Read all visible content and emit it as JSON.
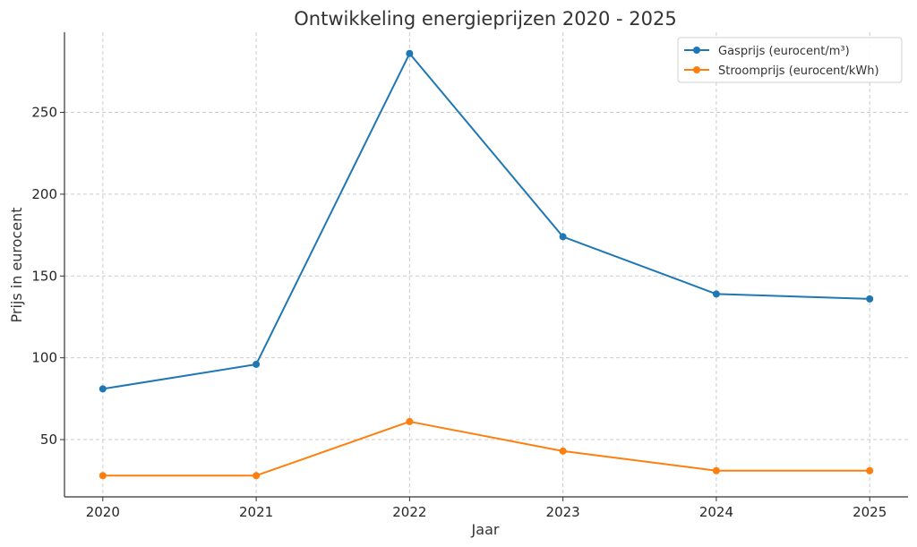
{
  "chart_data": {
    "type": "line",
    "title": "Ontwikkeling energieprijzen 2020 - 2025",
    "xlabel": "Jaar",
    "ylabel": "Prijs in eurocent",
    "x": [
      2020,
      2021,
      2022,
      2023,
      2024,
      2025
    ],
    "xlim": [
      2019.75,
      2025.25
    ],
    "ylim": [
      15,
      299
    ],
    "yticks": [
      50,
      100,
      150,
      200,
      250
    ],
    "grid": true,
    "legend_position": "top-right",
    "series": [
      {
        "name": "Gasprijs (eurocent/m³)",
        "color": "#1f77b4",
        "values": [
          81,
          96,
          286,
          174,
          139,
          136
        ]
      },
      {
        "name": "Stroomprijs (eurocent/kWh)",
        "color": "#ff7f0e",
        "values": [
          28,
          28,
          61,
          43,
          31,
          31
        ]
      }
    ]
  }
}
